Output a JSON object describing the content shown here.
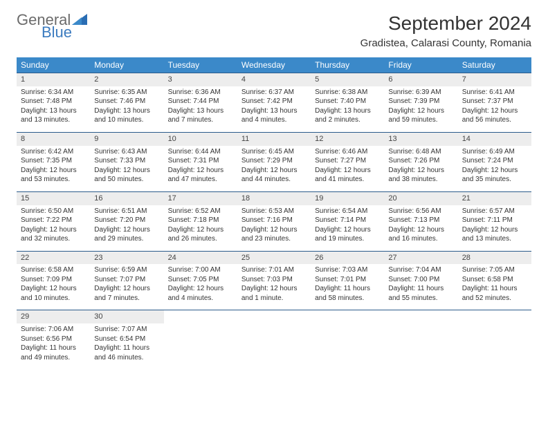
{
  "logo": {
    "general": "General",
    "blue": "Blue"
  },
  "title": "September 2024",
  "location": "Gradistea, Calarasi County, Romania",
  "colors": {
    "header_bg": "#3b89c9",
    "header_text": "#ffffff",
    "daynum_bg": "#ededed",
    "row_border": "#2a5a8a",
    "logo_gray": "#6b6b6b",
    "logo_blue": "#3b7bbf"
  },
  "weekdays": [
    "Sunday",
    "Monday",
    "Tuesday",
    "Wednesday",
    "Thursday",
    "Friday",
    "Saturday"
  ],
  "weeks": [
    [
      {
        "n": "1",
        "sr": "Sunrise: 6:34 AM",
        "ss": "Sunset: 7:48 PM",
        "d1": "Daylight: 13 hours",
        "d2": "and 13 minutes."
      },
      {
        "n": "2",
        "sr": "Sunrise: 6:35 AM",
        "ss": "Sunset: 7:46 PM",
        "d1": "Daylight: 13 hours",
        "d2": "and 10 minutes."
      },
      {
        "n": "3",
        "sr": "Sunrise: 6:36 AM",
        "ss": "Sunset: 7:44 PM",
        "d1": "Daylight: 13 hours",
        "d2": "and 7 minutes."
      },
      {
        "n": "4",
        "sr": "Sunrise: 6:37 AM",
        "ss": "Sunset: 7:42 PM",
        "d1": "Daylight: 13 hours",
        "d2": "and 4 minutes."
      },
      {
        "n": "5",
        "sr": "Sunrise: 6:38 AM",
        "ss": "Sunset: 7:40 PM",
        "d1": "Daylight: 13 hours",
        "d2": "and 2 minutes."
      },
      {
        "n": "6",
        "sr": "Sunrise: 6:39 AM",
        "ss": "Sunset: 7:39 PM",
        "d1": "Daylight: 12 hours",
        "d2": "and 59 minutes."
      },
      {
        "n": "7",
        "sr": "Sunrise: 6:41 AM",
        "ss": "Sunset: 7:37 PM",
        "d1": "Daylight: 12 hours",
        "d2": "and 56 minutes."
      }
    ],
    [
      {
        "n": "8",
        "sr": "Sunrise: 6:42 AM",
        "ss": "Sunset: 7:35 PM",
        "d1": "Daylight: 12 hours",
        "d2": "and 53 minutes."
      },
      {
        "n": "9",
        "sr": "Sunrise: 6:43 AM",
        "ss": "Sunset: 7:33 PM",
        "d1": "Daylight: 12 hours",
        "d2": "and 50 minutes."
      },
      {
        "n": "10",
        "sr": "Sunrise: 6:44 AM",
        "ss": "Sunset: 7:31 PM",
        "d1": "Daylight: 12 hours",
        "d2": "and 47 minutes."
      },
      {
        "n": "11",
        "sr": "Sunrise: 6:45 AM",
        "ss": "Sunset: 7:29 PM",
        "d1": "Daylight: 12 hours",
        "d2": "and 44 minutes."
      },
      {
        "n": "12",
        "sr": "Sunrise: 6:46 AM",
        "ss": "Sunset: 7:27 PM",
        "d1": "Daylight: 12 hours",
        "d2": "and 41 minutes."
      },
      {
        "n": "13",
        "sr": "Sunrise: 6:48 AM",
        "ss": "Sunset: 7:26 PM",
        "d1": "Daylight: 12 hours",
        "d2": "and 38 minutes."
      },
      {
        "n": "14",
        "sr": "Sunrise: 6:49 AM",
        "ss": "Sunset: 7:24 PM",
        "d1": "Daylight: 12 hours",
        "d2": "and 35 minutes."
      }
    ],
    [
      {
        "n": "15",
        "sr": "Sunrise: 6:50 AM",
        "ss": "Sunset: 7:22 PM",
        "d1": "Daylight: 12 hours",
        "d2": "and 32 minutes."
      },
      {
        "n": "16",
        "sr": "Sunrise: 6:51 AM",
        "ss": "Sunset: 7:20 PM",
        "d1": "Daylight: 12 hours",
        "d2": "and 29 minutes."
      },
      {
        "n": "17",
        "sr": "Sunrise: 6:52 AM",
        "ss": "Sunset: 7:18 PM",
        "d1": "Daylight: 12 hours",
        "d2": "and 26 minutes."
      },
      {
        "n": "18",
        "sr": "Sunrise: 6:53 AM",
        "ss": "Sunset: 7:16 PM",
        "d1": "Daylight: 12 hours",
        "d2": "and 23 minutes."
      },
      {
        "n": "19",
        "sr": "Sunrise: 6:54 AM",
        "ss": "Sunset: 7:14 PM",
        "d1": "Daylight: 12 hours",
        "d2": "and 19 minutes."
      },
      {
        "n": "20",
        "sr": "Sunrise: 6:56 AM",
        "ss": "Sunset: 7:13 PM",
        "d1": "Daylight: 12 hours",
        "d2": "and 16 minutes."
      },
      {
        "n": "21",
        "sr": "Sunrise: 6:57 AM",
        "ss": "Sunset: 7:11 PM",
        "d1": "Daylight: 12 hours",
        "d2": "and 13 minutes."
      }
    ],
    [
      {
        "n": "22",
        "sr": "Sunrise: 6:58 AM",
        "ss": "Sunset: 7:09 PM",
        "d1": "Daylight: 12 hours",
        "d2": "and 10 minutes."
      },
      {
        "n": "23",
        "sr": "Sunrise: 6:59 AM",
        "ss": "Sunset: 7:07 PM",
        "d1": "Daylight: 12 hours",
        "d2": "and 7 minutes."
      },
      {
        "n": "24",
        "sr": "Sunrise: 7:00 AM",
        "ss": "Sunset: 7:05 PM",
        "d1": "Daylight: 12 hours",
        "d2": "and 4 minutes."
      },
      {
        "n": "25",
        "sr": "Sunrise: 7:01 AM",
        "ss": "Sunset: 7:03 PM",
        "d1": "Daylight: 12 hours",
        "d2": "and 1 minute."
      },
      {
        "n": "26",
        "sr": "Sunrise: 7:03 AM",
        "ss": "Sunset: 7:01 PM",
        "d1": "Daylight: 11 hours",
        "d2": "and 58 minutes."
      },
      {
        "n": "27",
        "sr": "Sunrise: 7:04 AM",
        "ss": "Sunset: 7:00 PM",
        "d1": "Daylight: 11 hours",
        "d2": "and 55 minutes."
      },
      {
        "n": "28",
        "sr": "Sunrise: 7:05 AM",
        "ss": "Sunset: 6:58 PM",
        "d1": "Daylight: 11 hours",
        "d2": "and 52 minutes."
      }
    ],
    [
      {
        "n": "29",
        "sr": "Sunrise: 7:06 AM",
        "ss": "Sunset: 6:56 PM",
        "d1": "Daylight: 11 hours",
        "d2": "and 49 minutes."
      },
      {
        "n": "30",
        "sr": "Sunrise: 7:07 AM",
        "ss": "Sunset: 6:54 PM",
        "d1": "Daylight: 11 hours",
        "d2": "and 46 minutes."
      },
      null,
      null,
      null,
      null,
      null
    ]
  ]
}
